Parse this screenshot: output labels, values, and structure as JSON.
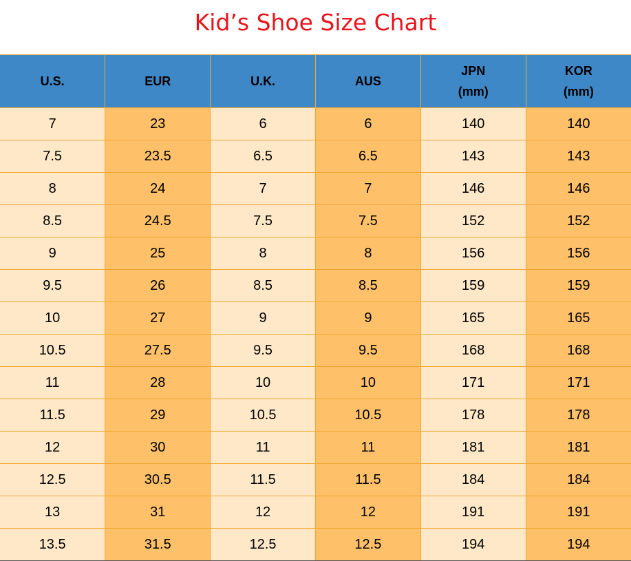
{
  "title": "Kid’s Shoe Size Chart",
  "colors": {
    "title": "#e8141b",
    "header_bg": "#3f88c8",
    "light_cell": "#fee8c8",
    "dark_cell": "#fec068",
    "grid": "#f0a830"
  },
  "chart_data": {
    "type": "table",
    "title": "Kid’s Shoe Size Chart",
    "columns": [
      {
        "lines": [
          "U.S."
        ]
      },
      {
        "lines": [
          "EUR"
        ]
      },
      {
        "lines": [
          "U.K."
        ]
      },
      {
        "lines": [
          "AUS"
        ]
      },
      {
        "lines": [
          "JPN",
          "(mm)"
        ]
      },
      {
        "lines": [
          "KOR",
          "(mm)"
        ]
      }
    ],
    "rows": [
      [
        "7",
        "23",
        "6",
        "6",
        "140",
        "140"
      ],
      [
        "7.5",
        "23.5",
        "6.5",
        "6.5",
        "143",
        "143"
      ],
      [
        "8",
        "24",
        "7",
        "7",
        "146",
        "146"
      ],
      [
        "8.5",
        "24.5",
        "7.5",
        "7.5",
        "152",
        "152"
      ],
      [
        "9",
        "25",
        "8",
        "8",
        "156",
        "156"
      ],
      [
        "9.5",
        "26",
        "8.5",
        "8.5",
        "159",
        "159"
      ],
      [
        "10",
        "27",
        "9",
        "9",
        "165",
        "165"
      ],
      [
        "10.5",
        "27.5",
        "9.5",
        "9.5",
        "168",
        "168"
      ],
      [
        "11",
        "28",
        "10",
        "10",
        "171",
        "171"
      ],
      [
        "11.5",
        "29",
        "10.5",
        "10.5",
        "178",
        "178"
      ],
      [
        "12",
        "30",
        "11",
        "11",
        "181",
        "181"
      ],
      [
        "12.5",
        "30.5",
        "11.5",
        "11.5",
        "184",
        "184"
      ],
      [
        "13",
        "31",
        "12",
        "12",
        "191",
        "191"
      ],
      [
        "13.5",
        "31.5",
        "12.5",
        "12.5",
        "194",
        "194"
      ]
    ]
  }
}
